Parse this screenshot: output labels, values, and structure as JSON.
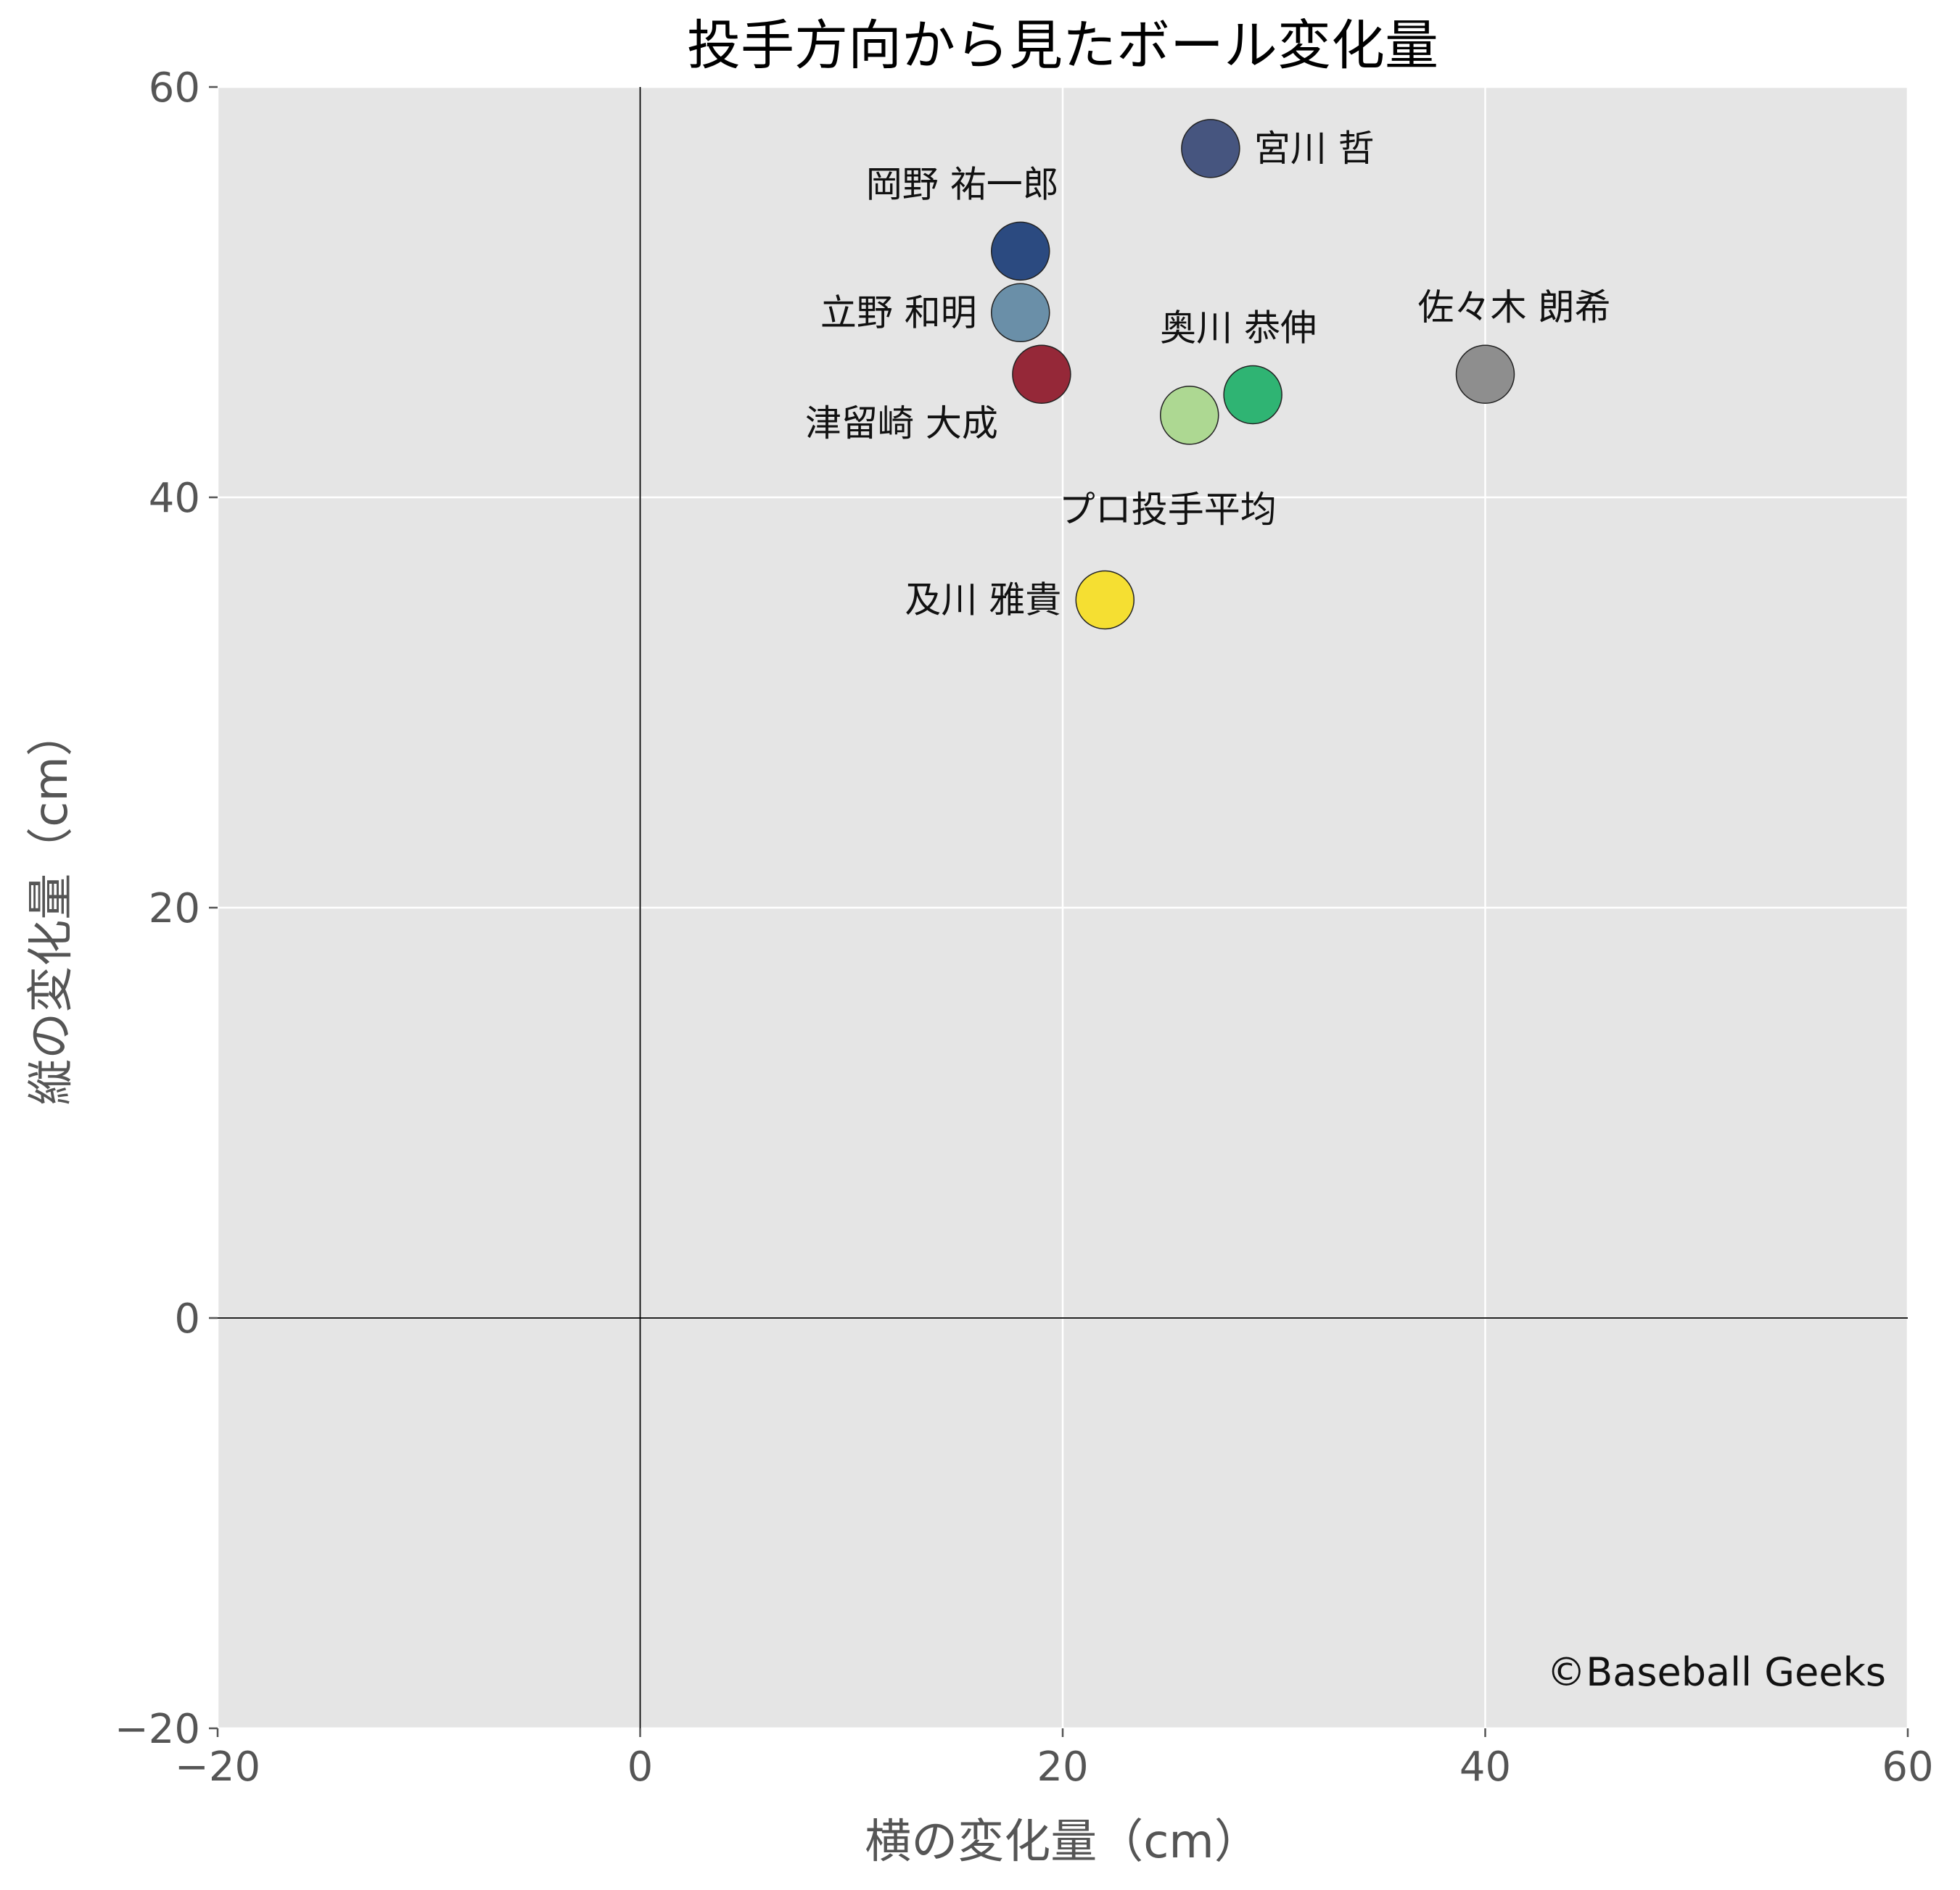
{
  "chart_data": {
    "type": "scatter",
    "title": "投手方向から見たボール変化量",
    "xlabel": "横の変化量（cm）",
    "ylabel": "縦の変化量（cm）",
    "xlim": [
      -20,
      60
    ],
    "ylim": [
      -20,
      60
    ],
    "xticks": [
      {
        "value": -20,
        "label": "−20"
      },
      {
        "value": 0,
        "label": "0"
      },
      {
        "value": 20,
        "label": "20"
      },
      {
        "value": 40,
        "label": "40"
      },
      {
        "value": 60,
        "label": "60"
      }
    ],
    "yticks": [
      {
        "value": -20,
        "label": "−20"
      },
      {
        "value": 0,
        "label": "0"
      },
      {
        "value": 20,
        "label": "20"
      },
      {
        "value": 40,
        "label": "40"
      },
      {
        "value": 60,
        "label": "60"
      }
    ],
    "grid": true,
    "background": "#e5e5e5",
    "points": [
      {
        "label": "宮川 哲",
        "x": 27,
        "y": 57,
        "color": "#46557f",
        "label_pos": "right"
      },
      {
        "label": "岡野 祐一郎",
        "x": 18,
        "y": 52,
        "color": "#2b4a80",
        "label_pos": "top"
      },
      {
        "label": "立野 和明",
        "x": 18,
        "y": 49,
        "color": "#6a8fa8",
        "label_pos": "left"
      },
      {
        "label": "津留崎 大成",
        "x": 19,
        "y": 46,
        "color": "#952838",
        "label_pos": "bottom-left"
      },
      {
        "label": "奥川 恭伸",
        "x": 29,
        "y": 45,
        "color": "#2fb473",
        "label_pos": "top-left"
      },
      {
        "label": "プロ投手平均",
        "x": 26,
        "y": 44,
        "color": "#add892",
        "label_pos": "bottom"
      },
      {
        "label": "佐々木 朗希",
        "x": 40,
        "y": 46,
        "color": "#8e8e8e",
        "label_pos": "top"
      },
      {
        "label": "及川 雅貴",
        "x": 22,
        "y": 35,
        "color": "#f5df32",
        "label_pos": "left"
      }
    ],
    "credit": "©Baseball Geeks"
  }
}
